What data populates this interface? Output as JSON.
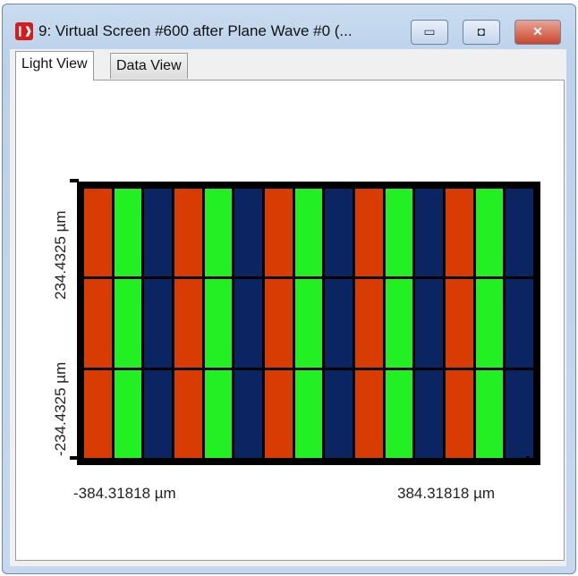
{
  "window": {
    "title": "9: Virtual Screen #600 after Plane Wave #0 (...",
    "icon": "app-icon",
    "minimize": "▭",
    "maximize": "◘",
    "close": "✕"
  },
  "tabs": [
    {
      "label": "Light View",
      "active": true
    },
    {
      "label": "Data View",
      "active": false
    }
  ],
  "plot": {
    "y_top_label": "234.4325 µm",
    "y_bottom_label": "-234.4325 µm",
    "x_left_label": "-384.31818 µm",
    "x_right_label": "384.31818 µm",
    "rows": 3,
    "pattern": [
      "red",
      "green",
      "blue"
    ],
    "triplets": 5,
    "colors": {
      "red": "#d83c02",
      "green": "#22f022",
      "blue": "#0b2462",
      "grid": "#000000"
    }
  }
}
